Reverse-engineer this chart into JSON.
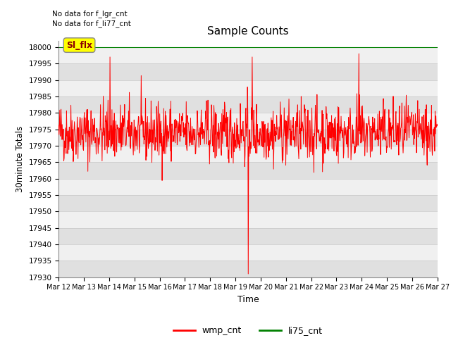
{
  "title": "Sample Counts",
  "ylabel": "30minute Totals",
  "xlabel": "Time",
  "ylim": [
    17930,
    18002
  ],
  "yticks": [
    17930,
    17935,
    17940,
    17945,
    17950,
    17955,
    17960,
    17965,
    17970,
    17975,
    17980,
    17985,
    17990,
    17995,
    18000
  ],
  "xtick_labels": [
    "Mar 12",
    "Mar 13",
    "Mar 14",
    "Mar 15",
    "Mar 16",
    "Mar 17",
    "Mar 18",
    "Mar 19",
    "Mar 20",
    "Mar 21",
    "Mar 22",
    "Mar 23",
    "Mar 24",
    "Mar 25",
    "Mar 26",
    "Mar 27"
  ],
  "no_data_texts": [
    "No data for f_lgr_cnt",
    "No data for f_li77_cnt"
  ],
  "annotation_box_text": "Sl_flx",
  "legend_entries": [
    "wmp_cnt",
    "li75_cnt"
  ],
  "legend_colors": [
    "red",
    "green"
  ],
  "wmp_cnt_color": "red",
  "li75_cnt_color": "green",
  "bg_color": "#ffffff",
  "grid_color_dark": "#d0d0d0",
  "grid_color_light": "#e8e8e8",
  "n_points": 960,
  "seed": 42,
  "base_value": 17974,
  "noise_std": 4.5,
  "dip_index": 480,
  "dip_val": 17931,
  "spike_index": 760,
  "spike_val": 17998,
  "spike2_index": 130,
  "spike2_val": 17997,
  "spike3_index": 490,
  "spike3_val": 17997
}
